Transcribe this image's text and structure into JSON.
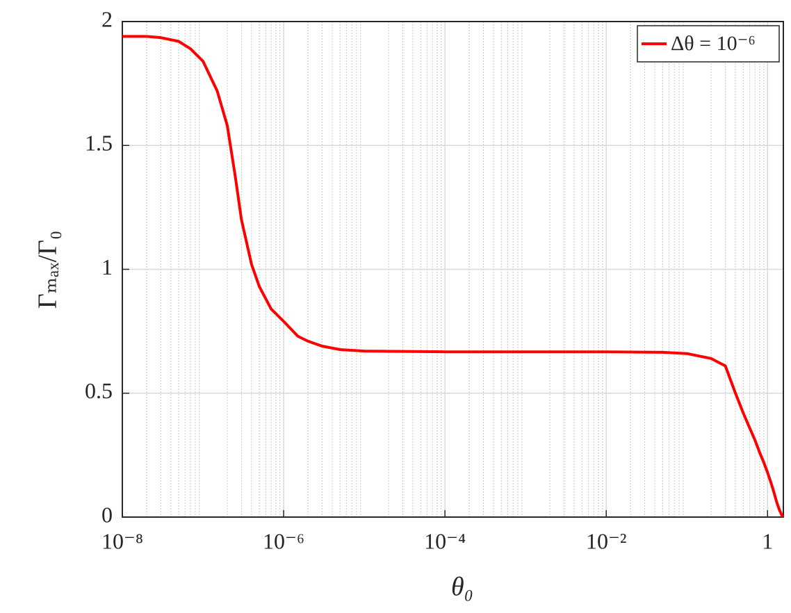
{
  "chart_data": {
    "type": "line",
    "xlabel": "θ₀",
    "ylabel": "Γₘₐₓ/Γ₀",
    "xscale": "log",
    "grid": true,
    "minor_grid": true,
    "legend": "upper right",
    "xlim": [
      1e-08,
      1.5708
    ],
    "ylim": [
      0,
      2
    ],
    "xticks": [
      {
        "value": 1e-08,
        "label": "10⁻⁸"
      },
      {
        "value": 1e-06,
        "label": "10⁻⁶"
      },
      {
        "value": 0.0001,
        "label": "10⁻⁴"
      },
      {
        "value": 0.01,
        "label": "10⁻²"
      },
      1
    ],
    "yticks": [
      0,
      0.5,
      1,
      1.5,
      2
    ],
    "x": [
      1e-08,
      2e-08,
      3e-08,
      5e-08,
      7e-08,
      1e-07,
      1.5e-07,
      2e-07,
      2.5e-07,
      3e-07,
      4e-07,
      5e-07,
      7e-07,
      1e-06,
      1.5e-06,
      2e-06,
      3e-06,
      5e-06,
      1e-05,
      0.0001,
      0.001,
      0.01,
      0.05,
      0.1,
      0.2,
      0.3,
      0.4,
      0.5,
      0.6,
      0.7,
      0.8,
      0.9,
      1.0,
      1.1,
      1.2,
      1.3,
      1.4,
      1.5,
      1.5708
    ],
    "series": [
      {
        "name": "Δθ = 10⁻⁶",
        "color": "#ff0000",
        "values": [
          1.94,
          1.94,
          1.935,
          1.92,
          1.89,
          1.84,
          1.72,
          1.58,
          1.38,
          1.2,
          1.02,
          0.93,
          0.84,
          0.79,
          0.73,
          0.71,
          0.69,
          0.676,
          0.67,
          0.667,
          0.667,
          0.667,
          0.665,
          0.66,
          0.64,
          0.61,
          0.5,
          0.42,
          0.36,
          0.31,
          0.26,
          0.22,
          0.18,
          0.14,
          0.1,
          0.06,
          0.03,
          0.008,
          0
        ]
      }
    ]
  }
}
